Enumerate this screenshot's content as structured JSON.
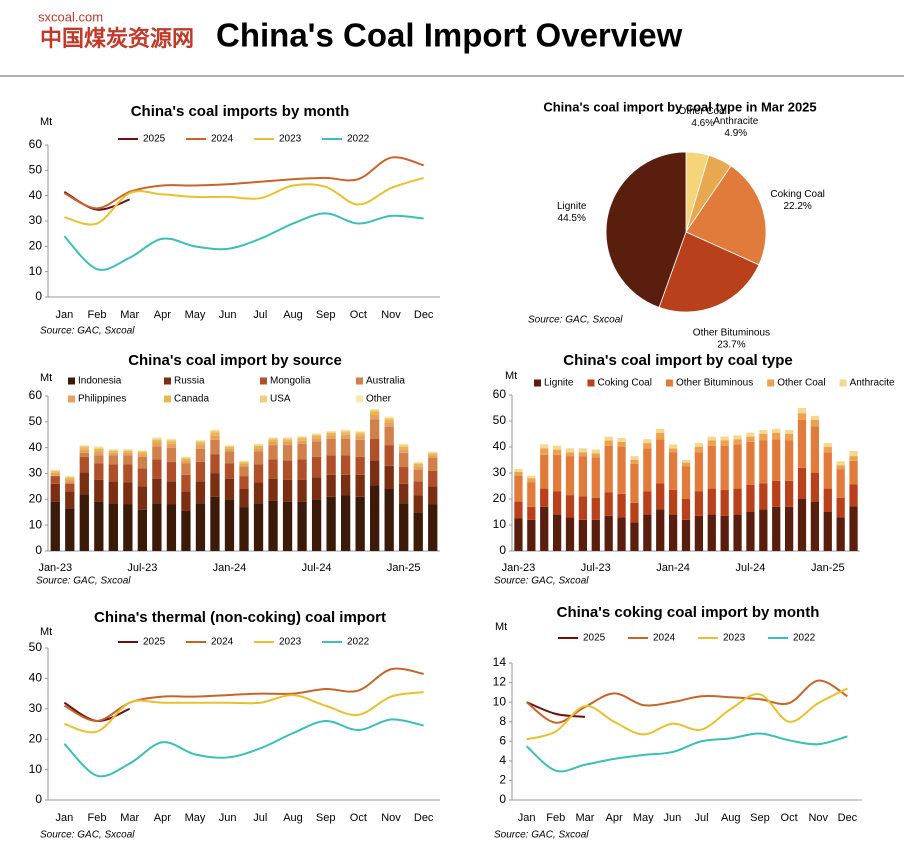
{
  "header": {
    "site": "sxcoal.com",
    "brand": "中国煤炭资源网",
    "title": "China's Coal Import Overview"
  },
  "chart_data": [
    {
      "type": "line",
      "title": "China's coal imports by month",
      "y_label": "Mt",
      "source": "Source: GAC, Sxcoal",
      "categories": [
        "Jan",
        "Feb",
        "Mar",
        "Apr",
        "May",
        "Jun",
        "Jul",
        "Aug",
        "Sep",
        "Oct",
        "Nov",
        "Dec"
      ],
      "ylim": [
        0,
        60
      ],
      "yticks": [
        0,
        10,
        20,
        30,
        40,
        50,
        60
      ],
      "series": [
        {
          "name": "2025",
          "color": "#6b0f0f",
          "values": [
            41.5,
            34.5,
            38.5,
            null,
            null,
            null,
            null,
            null,
            null,
            null,
            null,
            null
          ]
        },
        {
          "name": "2024",
          "color": "#c8642a",
          "values": [
            41,
            35,
            41.5,
            44,
            44,
            44.5,
            45.5,
            46.5,
            47,
            46.5,
            55,
            52
          ]
        },
        {
          "name": "2023",
          "color": "#e8c030",
          "values": [
            31.5,
            29,
            41,
            40.5,
            39.5,
            39.5,
            39,
            44,
            43.5,
            36.5,
            43,
            47
          ]
        },
        {
          "name": "2022",
          "color": "#3bbfb8",
          "values": [
            24,
            11,
            15.5,
            23,
            20,
            19,
            23,
            29,
            33,
            29,
            32,
            31
          ]
        }
      ]
    },
    {
      "type": "pie",
      "title": "China's coal import by coal type in Mar 2025",
      "source": "Source: GAC, Sxcoal",
      "categories": [
        "Other Coal",
        "Anthracite",
        "Coking Coal",
        "Other Bituminous",
        "Lignite"
      ],
      "values": [
        4.6,
        4.9,
        22.2,
        23.7,
        44.5
      ],
      "value_labels": [
        "4.6%",
        "4.9%",
        "22.2%",
        "23.7%",
        "44.5%"
      ],
      "colors": [
        "#f5d47a",
        "#e8a850",
        "#e07b3c",
        "#b8401a",
        "#5a1e0e"
      ]
    },
    {
      "type": "bar",
      "stacked": true,
      "title": "China's coal import by source",
      "y_label": "Mt",
      "source": "Source: GAC, Sxcoal",
      "categories": [
        "Jan-23",
        null,
        null,
        null,
        null,
        null,
        "Jul-23",
        null,
        null,
        null,
        null,
        null,
        "Jan-24",
        null,
        null,
        null,
        null,
        null,
        "Jul-24",
        null,
        null,
        null,
        null,
        null,
        "Jan-25",
        null,
        null
      ],
      "ylim": [
        0,
        60
      ],
      "yticks": [
        0,
        10,
        20,
        30,
        40,
        50,
        60
      ],
      "series": [
        {
          "name": "Indonesia",
          "color": "#3b1a0a",
          "values": [
            19,
            16.5,
            22,
            19,
            18.5,
            18,
            16,
            18.5,
            18,
            15.5,
            18.5,
            21,
            20,
            17,
            18.5,
            19.5,
            19,
            19,
            20,
            21,
            21.5,
            21,
            25.5,
            24,
            18.5,
            15,
            18
          ]
        },
        {
          "name": "Russia",
          "color": "#7a2e12",
          "values": [
            7,
            6.5,
            8.5,
            8.5,
            8.5,
            8.5,
            9,
            9.5,
            9,
            7.5,
            8.5,
            9,
            8,
            7,
            8,
            8.5,
            8.5,
            8.5,
            8.5,
            8.5,
            8,
            8.5,
            9.5,
            9,
            7.5,
            6.5,
            7
          ]
        },
        {
          "name": "Mongolia",
          "color": "#b0502a",
          "values": [
            3,
            3,
            6,
            6.5,
            6.5,
            7,
            7,
            7.5,
            7.5,
            6.5,
            7.5,
            7.5,
            6,
            5,
            7,
            7.5,
            7.5,
            8,
            8,
            7.5,
            7.5,
            7,
            8.5,
            8,
            6.5,
            5.5,
            6
          ]
        },
        {
          "name": "Australia",
          "color": "#d0804a",
          "values": [
            0.1,
            0.5,
            1.5,
            3,
            3.5,
            3.5,
            4.5,
            5,
            5.5,
            4.5,
            5,
            5.5,
            4.5,
            3.8,
            5,
            5.5,
            6,
            6,
            6,
            6.5,
            6.5,
            6.5,
            7.5,
            7,
            5.5,
            4.5,
            5
          ]
        },
        {
          "name": "Philippines",
          "color": "#e8a060",
          "values": [
            1.2,
            1.2,
            1.2,
            1.5,
            1,
            1,
            1,
            1.5,
            1.5,
            1,
            1.5,
            1.8,
            1,
            0.9,
            1.2,
            1.2,
            1.2,
            1.2,
            1.2,
            1.2,
            1.5,
            1.5,
            1.8,
            1.8,
            1.4,
            1.3,
            1
          ]
        },
        {
          "name": "Canada",
          "color": "#e8b850",
          "values": [
            0.6,
            0.8,
            1,
            1,
            0.8,
            0.8,
            0.8,
            1,
            1,
            0.8,
            1,
            1.2,
            0.8,
            0.7,
            1,
            1,
            1,
            1,
            1,
            1,
            1,
            1,
            1.2,
            1.2,
            1,
            0.9,
            0.8
          ]
        },
        {
          "name": "USA",
          "color": "#f0d080",
          "values": [
            0.3,
            0.3,
            0.5,
            0.6,
            0.4,
            0.4,
            0.4,
            0.6,
            0.6,
            0.4,
            0.6,
            0.6,
            0.4,
            0.3,
            0.5,
            0.5,
            0.5,
            0.5,
            0.5,
            0.5,
            0.6,
            0.6,
            0.6,
            0.6,
            0.6,
            0.5,
            0.4
          ]
        },
        {
          "name": "Other",
          "color": "#f8e8b0",
          "values": [
            0.3,
            0.2,
            0.3,
            0.4,
            0.3,
            0.3,
            0.3,
            0.4,
            0.4,
            0.3,
            0.4,
            0.4,
            0.3,
            0.3,
            0.3,
            0.3,
            0.3,
            0.3,
            0.3,
            0.3,
            0.4,
            0.4,
            0.4,
            0.4,
            0.5,
            0.3,
            0.3
          ]
        }
      ]
    },
    {
      "type": "bar",
      "stacked": true,
      "title": "China's coal import by coal type",
      "y_label": "Mt",
      "source": "Source: GAC, Sxcoal",
      "categories": [
        "Jan-23",
        null,
        null,
        null,
        null,
        null,
        "Jul-23",
        null,
        null,
        null,
        null,
        null,
        "Jan-24",
        null,
        null,
        null,
        null,
        null,
        "Jul-24",
        null,
        null,
        null,
        null,
        null,
        "Jan-25",
        null,
        null
      ],
      "ylim": [
        0,
        60
      ],
      "yticks": [
        0,
        10,
        20,
        30,
        40,
        50,
        60
      ],
      "series": [
        {
          "name": "Lignite",
          "color": "#5a1e0e",
          "values": [
            12.5,
            12,
            17,
            14,
            13,
            12,
            12,
            13.5,
            13,
            11,
            14,
            16,
            14,
            12,
            13.5,
            14,
            13.5,
            14,
            15,
            16,
            17,
            17,
            20,
            19,
            15,
            13,
            17.1
          ]
        },
        {
          "name": "Coking Coal",
          "color": "#b8401a",
          "values": [
            6.5,
            5,
            7,
            9,
            8.5,
            9,
            8.5,
            9,
            9,
            7.5,
            9,
            10,
            9.5,
            8,
            9.5,
            10,
            10,
            10,
            10.5,
            10,
            10,
            10,
            12,
            11,
            9,
            7.5,
            8.5
          ]
        },
        {
          "name": "Other Bituminous",
          "color": "#e07b3c",
          "values": [
            10,
            9.5,
            13,
            14,
            15,
            15.5,
            15.5,
            18,
            18,
            15,
            16.5,
            17,
            14.5,
            12.5,
            15,
            16.5,
            17,
            17,
            16.5,
            16.5,
            16,
            15.5,
            18.5,
            18,
            14,
            11,
            9.1
          ]
        },
        {
          "name": "Other Coal",
          "color": "#eda050",
          "values": [
            1.5,
            1.5,
            2.5,
            2,
            1.5,
            1.5,
            1.5,
            2,
            2,
            1.5,
            2,
            2.5,
            1.5,
            1.5,
            2,
            2,
            2,
            2,
            2,
            2.5,
            2.5,
            2.5,
            2.5,
            2.5,
            2,
            1.5,
            1.8
          ]
        },
        {
          "name": "Anthracite",
          "color": "#f5d890",
          "values": [
            1,
            1,
            1.5,
            1.5,
            1.5,
            1.5,
            1.5,
            1.5,
            1.5,
            1.5,
            1.5,
            1.5,
            1.5,
            1,
            1.5,
            1.5,
            1.5,
            1.5,
            1.5,
            1.5,
            1.5,
            1.5,
            2,
            1.5,
            1.5,
            1.5,
            2
          ]
        }
      ]
    },
    {
      "type": "line",
      "title": "China's thermal (non-coking)  coal import",
      "y_label": "Mt",
      "source": "Source: GAC, Sxcoal",
      "categories": [
        "Jan",
        "Feb",
        "Mar",
        "Apr",
        "May",
        "Jun",
        "Jul",
        "Aug",
        "Sep",
        "Oct",
        "Nov",
        "Dec"
      ],
      "ylim": [
        0,
        50
      ],
      "yticks": [
        0,
        10,
        20,
        30,
        40,
        50
      ],
      "series": [
        {
          "name": "2025",
          "color": "#6b0f0f",
          "values": [
            32,
            26,
            30,
            null,
            null,
            null,
            null,
            null,
            null,
            null,
            null,
            null
          ]
        },
        {
          "name": "2024",
          "color": "#c8642a",
          "values": [
            31,
            26,
            32,
            34,
            34,
            34.5,
            35,
            35,
            36.5,
            36,
            43,
            41.5
          ]
        },
        {
          "name": "2023",
          "color": "#e8c030",
          "values": [
            25,
            22.5,
            32,
            32,
            32,
            32,
            32,
            34.5,
            31,
            28,
            34,
            35.5
          ]
        },
        {
          "name": "2022",
          "color": "#3bbfb8",
          "values": [
            18.5,
            8,
            12,
            19,
            15,
            14,
            17,
            22,
            26,
            23,
            26.5,
            24.5
          ]
        }
      ]
    },
    {
      "type": "line",
      "title": "China's coking coal import by month",
      "y_label": "Mt",
      "source": "Source: GAC, Sxcoal",
      "categories": [
        "Jan",
        "Feb",
        "Mar",
        "Apr",
        "May",
        "Jun",
        "Jul",
        "Aug",
        "Sep",
        "Oct",
        "Nov",
        "Dec"
      ],
      "ylim": [
        0,
        14
      ],
      "yticks": [
        0,
        2,
        4,
        6,
        8,
        10,
        12,
        14
      ],
      "series": [
        {
          "name": "2025",
          "color": "#6b0f0f",
          "values": [
            10,
            8.8,
            8.5,
            null,
            null,
            null,
            null,
            null,
            null,
            null,
            null,
            null
          ]
        },
        {
          "name": "2024",
          "color": "#c8642a",
          "values": [
            10,
            7.9,
            9.5,
            10.9,
            9.7,
            10,
            10.6,
            10.5,
            10.3,
            9.9,
            12.2,
            10.6
          ]
        },
        {
          "name": "2023",
          "color": "#e8c030",
          "values": [
            6.2,
            7,
            9.6,
            8,
            6.7,
            7.8,
            7.2,
            9.3,
            10.8,
            8,
            9.9,
            11.4
          ]
        },
        {
          "name": "2022",
          "color": "#3bbfb8",
          "values": [
            5.5,
            3,
            3.6,
            4.2,
            4.6,
            4.9,
            6,
            6.3,
            6.8,
            6.1,
            5.7,
            6.5
          ]
        }
      ]
    }
  ]
}
